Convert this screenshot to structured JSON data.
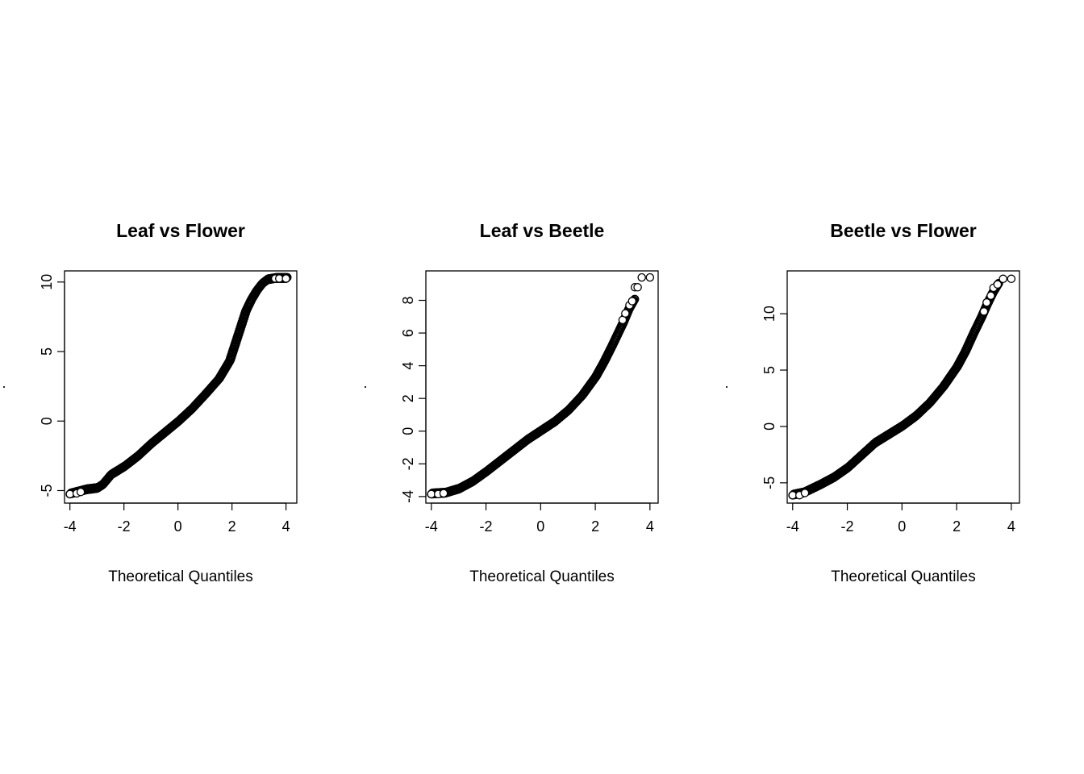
{
  "chart_data": [
    {
      "type": "scatter",
      "title": "Leaf vs Flower",
      "xlabel": "Theoretical Quantiles",
      "ylabel": ".",
      "xlim": [
        -4.2,
        4.4
      ],
      "ylim": [
        -5.9,
        10.8
      ],
      "xticks": [
        -4,
        -2,
        0,
        2,
        4
      ],
      "yticks": [
        -5,
        0,
        5,
        10
      ],
      "grid": false,
      "marker": "open-circle",
      "curve": [
        [
          -4.0,
          -5.25
        ],
        [
          -3.7,
          -5.1
        ],
        [
          -3.4,
          -4.95
        ],
        [
          -3.0,
          -4.85
        ],
        [
          -2.8,
          -4.6
        ],
        [
          -2.5,
          -3.9
        ],
        [
          -2.0,
          -3.3
        ],
        [
          -1.5,
          -2.55
        ],
        [
          -1.0,
          -1.65
        ],
        [
          -0.5,
          -0.85
        ],
        [
          0.0,
          -0.05
        ],
        [
          0.5,
          0.85
        ],
        [
          1.0,
          1.9
        ],
        [
          1.5,
          3.0
        ],
        [
          1.9,
          4.3
        ],
        [
          2.1,
          5.5
        ],
        [
          2.3,
          6.7
        ],
        [
          2.5,
          7.9
        ],
        [
          2.7,
          8.7
        ],
        [
          2.9,
          9.35
        ],
        [
          3.1,
          9.85
        ],
        [
          3.3,
          10.15
        ],
        [
          3.6,
          10.25
        ],
        [
          4.0,
          10.25
        ]
      ],
      "outliers": [
        [
          -4.0,
          -5.25
        ],
        [
          -3.75,
          -5.2
        ],
        [
          -3.6,
          -5.1
        ],
        [
          3.6,
          10.25
        ],
        [
          3.75,
          10.25
        ],
        [
          4.0,
          10.25
        ]
      ]
    },
    {
      "type": "scatter",
      "title": "Leaf vs Beetle",
      "xlabel": "Theoretical Quantiles",
      "ylabel": ".",
      "xlim": [
        -4.2,
        4.3
      ],
      "ylim": [
        -4.4,
        9.8
      ],
      "xticks": [
        -4,
        -2,
        0,
        2,
        4
      ],
      "yticks": [
        -4,
        -2,
        0,
        2,
        4,
        6,
        8
      ],
      "grid": false,
      "marker": "open-circle",
      "curve": [
        [
          -4.0,
          -3.85
        ],
        [
          -3.5,
          -3.8
        ],
        [
          -3.0,
          -3.55
        ],
        [
          -2.5,
          -3.1
        ],
        [
          -2.0,
          -2.5
        ],
        [
          -1.5,
          -1.85
        ],
        [
          -1.0,
          -1.2
        ],
        [
          -0.5,
          -0.55
        ],
        [
          0.0,
          0.0
        ],
        [
          0.5,
          0.55
        ],
        [
          1.0,
          1.25
        ],
        [
          1.5,
          2.15
        ],
        [
          2.0,
          3.3
        ],
        [
          2.3,
          4.2
        ],
        [
          2.6,
          5.2
        ],
        [
          2.8,
          5.9
        ],
        [
          3.0,
          6.6
        ],
        [
          3.2,
          7.4
        ],
        [
          3.4,
          8.0
        ]
      ],
      "outliers": [
        [
          -4.0,
          -3.85
        ],
        [
          -3.75,
          -3.85
        ],
        [
          -3.55,
          -3.8
        ],
        [
          3.0,
          6.8
        ],
        [
          3.1,
          7.2
        ],
        [
          3.25,
          7.7
        ],
        [
          3.35,
          7.95
        ],
        [
          3.45,
          8.8
        ],
        [
          3.55,
          8.8
        ],
        [
          3.7,
          9.4
        ],
        [
          4.0,
          9.4
        ]
      ]
    },
    {
      "type": "scatter",
      "title": "Beetle vs Flower",
      "xlabel": "Theoretical Quantiles",
      "ylabel": ".",
      "xlim": [
        -4.2,
        4.3
      ],
      "ylim": [
        -6.8,
        13.8
      ],
      "xticks": [
        -4,
        -2,
        0,
        2,
        4
      ],
      "yticks": [
        -5,
        0,
        5,
        10
      ],
      "grid": false,
      "marker": "open-circle",
      "curve": [
        [
          -4.0,
          -6.1
        ],
        [
          -3.6,
          -5.9
        ],
        [
          -3.0,
          -5.2
        ],
        [
          -2.5,
          -4.55
        ],
        [
          -2.0,
          -3.7
        ],
        [
          -1.5,
          -2.6
        ],
        [
          -1.0,
          -1.5
        ],
        [
          -0.5,
          -0.75
        ],
        [
          0.0,
          0.0
        ],
        [
          0.5,
          0.9
        ],
        [
          1.0,
          2.05
        ],
        [
          1.5,
          3.5
        ],
        [
          2.0,
          5.25
        ],
        [
          2.3,
          6.6
        ],
        [
          2.6,
          8.2
        ],
        [
          2.9,
          9.7
        ],
        [
          3.1,
          10.8
        ],
        [
          3.3,
          11.8
        ],
        [
          3.5,
          12.6
        ]
      ],
      "outliers": [
        [
          -4.0,
          -6.1
        ],
        [
          -3.75,
          -6.1
        ],
        [
          -3.55,
          -5.9
        ],
        [
          3.0,
          10.2
        ],
        [
          3.1,
          11.0
        ],
        [
          3.25,
          11.6
        ],
        [
          3.35,
          12.3
        ],
        [
          3.5,
          12.6
        ],
        [
          3.7,
          13.1
        ],
        [
          4.0,
          13.1
        ]
      ]
    }
  ]
}
